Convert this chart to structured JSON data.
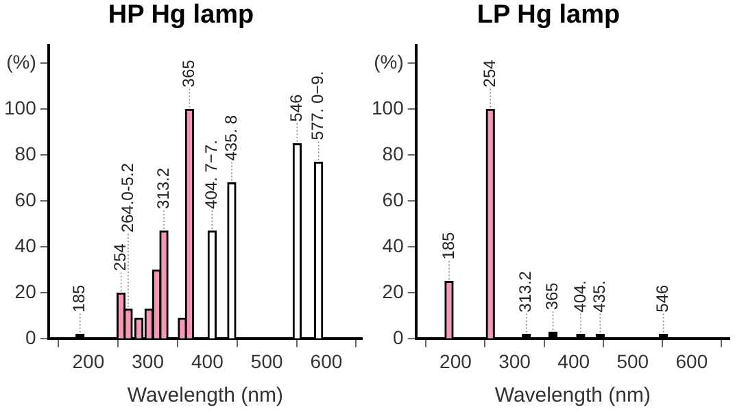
{
  "chart_data": [
    {
      "type": "bar",
      "title": "HP Hg lamp",
      "xlabel": "Wavelength (nm)",
      "x": [
        186,
        255,
        267,
        285,
        302,
        315,
        327,
        358,
        370,
        408,
        441,
        551,
        587
      ],
      "values": [
        2,
        20,
        13,
        9,
        13,
        30,
        47,
        9,
        100,
        47,
        68,
        85,
        77
      ],
      "colors": [
        "#000000",
        "#f598b4",
        "#f598b4",
        "#f598b4",
        "#f598b4",
        "#f598b4",
        "#f598b4",
        "#f598b4",
        "#f598b4",
        "#ffffff",
        "#ffffff",
        "#ffffff",
        "#ffffff"
      ],
      "xlim": [
        133,
        660
      ],
      "xticks": [
        200,
        300,
        400,
        500,
        600
      ],
      "ylim": [
        0,
        128
      ],
      "yticks": [
        0,
        20,
        40,
        60,
        80,
        100,
        {
          "value": 120,
          "label": "(%)"
        }
      ],
      "annotations": [
        {
          "text": "185",
          "x": 186,
          "y": 2
        },
        {
          "text": "254",
          "x": 255,
          "y": 20
        },
        {
          "text": "264.0-5.2",
          "x": 267,
          "y": 13
        },
        {
          "text": "313.2",
          "x": 327,
          "y": 47
        },
        {
          "text": "365",
          "x": 370,
          "y": 100
        },
        {
          "text": "404. 7−7.",
          "x": 408,
          "y": 47
        },
        {
          "text": "435. 8",
          "x": 441,
          "y": 68
        },
        {
          "text": "546",
          "x": 551,
          "y": 85
        },
        {
          "text": "577. 0−9.",
          "x": 587,
          "y": 77
        }
      ]
    },
    {
      "type": "bar",
      "title": "LP Hg lamp",
      "xlabel": "Wavelength (nm)",
      "x": [
        189,
        259,
        320,
        365,
        412,
        445,
        552
      ],
      "values": [
        25,
        100,
        2,
        3,
        2,
        2,
        2
      ],
      "colors": [
        "#f598b4",
        "#f598b4",
        "#000000",
        "#000000",
        "#000000",
        "#000000",
        "#000000"
      ],
      "xlim": [
        133,
        664
      ],
      "xticks": [
        200,
        300,
        400,
        500,
        600
      ],
      "ylim": [
        0,
        128
      ],
      "yticks": [
        0,
        20,
        40,
        60,
        80,
        100,
        {
          "value": 120,
          "label": "(%)"
        }
      ],
      "annotations": [
        {
          "text": "185",
          "x": 189,
          "y": 25
        },
        {
          "text": "254",
          "x": 259,
          "y": 100
        },
        {
          "text": "313.2",
          "x": 320,
          "y": 2
        },
        {
          "text": "365",
          "x": 365,
          "y": 3
        },
        {
          "text": "404.",
          "x": 412,
          "y": 2
        },
        {
          "text": "435.",
          "x": 445,
          "y": 2
        },
        {
          "text": "546",
          "x": 552,
          "y": 2
        }
      ]
    }
  ]
}
